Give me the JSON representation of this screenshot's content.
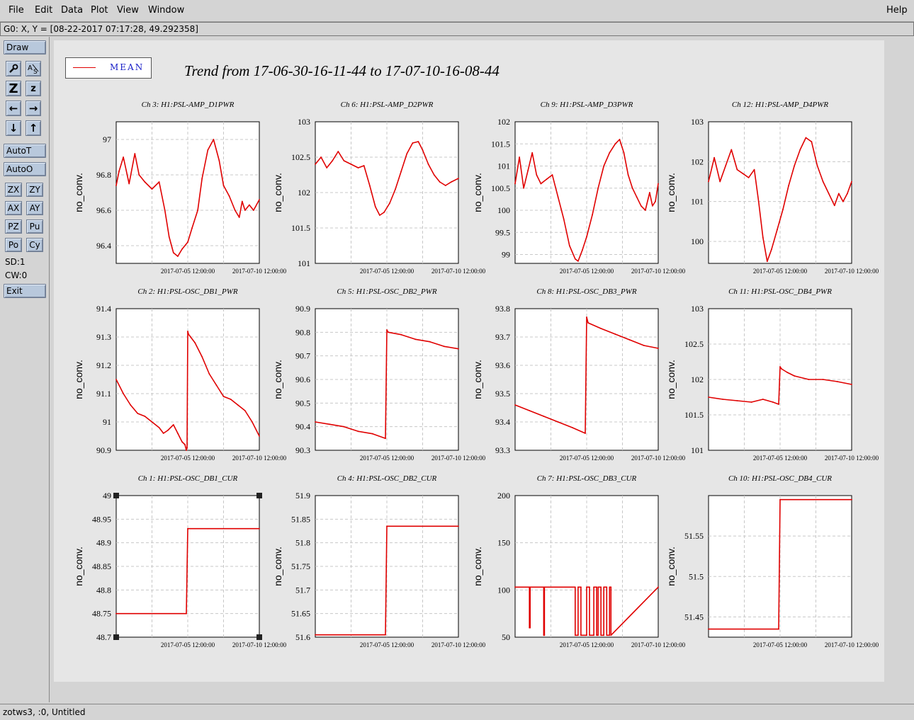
{
  "menu": {
    "file": "File",
    "edit": "Edit",
    "data": "Data",
    "plot": "Plot",
    "view": "View",
    "window": "Window",
    "help": "Help"
  },
  "coord_readout": "G0: X, Y = [08-22-2017 07:17:28, 49.292358]",
  "tools": {
    "draw": "Draw",
    "autot": "AutoT",
    "autoo": "AutoO",
    "zx": "ZX",
    "zy": "ZY",
    "ax": "AX",
    "ay": "AY",
    "pz": "PZ",
    "pu": "Pu",
    "po": "Po",
    "cy": "Cy",
    "sd": "SD:1",
    "cw": "CW:0",
    "exit": "Exit",
    "icons": [
      "wrench-icon",
      "text-resize-icon",
      "zoom-out-icon",
      "zoom-in-icon",
      "arrow-left-icon",
      "arrow-right-icon",
      "arrow-down-icon",
      "arrow-up-icon"
    ]
  },
  "legend": {
    "label": "MEAN",
    "color": "#e00000"
  },
  "main_title": "Trend from 17-06-30-16-11-44 to 17-07-10-16-08-44",
  "status": "zotws3, :0, Untitled",
  "chart_data": [
    {
      "type": "line",
      "title": "Ch 3: H1:PSL-AMP_D1PWR",
      "ylabel": "no_conv.",
      "ylim": [
        96.3,
        97.1
      ],
      "yticks": [
        "96.4",
        "96.6",
        "96.8",
        "97"
      ],
      "ytick_values": [
        96.4,
        96.6,
        96.8,
        97.0
      ],
      "xticks": [
        "2017-07-05 12:00:00",
        "2017-07-10 12:00:00"
      ],
      "x": [
        0,
        0.02,
        0.05,
        0.09,
        0.13,
        0.16,
        0.2,
        0.25,
        0.3,
        0.34,
        0.37,
        0.4,
        0.43,
        0.46,
        0.5,
        0.53,
        0.57,
        0.6,
        0.64,
        0.68,
        0.72,
        0.75,
        0.79,
        0.83,
        0.86,
        0.88,
        0.9,
        0.93,
        0.96,
        1.0
      ],
      "values": [
        96.74,
        96.82,
        96.9,
        96.75,
        96.92,
        96.8,
        96.76,
        96.72,
        96.76,
        96.6,
        96.45,
        96.36,
        96.34,
        96.38,
        96.42,
        96.5,
        96.6,
        96.78,
        96.94,
        97.0,
        96.88,
        96.74,
        96.68,
        96.6,
        96.56,
        96.65,
        96.6,
        96.63,
        96.6,
        96.66
      ]
    },
    {
      "type": "line",
      "title": "Ch 6: H1:PSL-AMP_D2PWR",
      "ylabel": "no_conv.",
      "ylim": [
        101,
        103
      ],
      "yticks": [
        "101",
        "101.5",
        "102",
        "102.5",
        "103"
      ],
      "ytick_values": [
        101,
        101.5,
        102,
        102.5,
        103
      ],
      "xticks": [
        "2017-07-05 12:00:00",
        "2017-07-10 12:00:00"
      ],
      "x": [
        0,
        0.04,
        0.08,
        0.12,
        0.16,
        0.2,
        0.25,
        0.3,
        0.34,
        0.38,
        0.42,
        0.45,
        0.48,
        0.52,
        0.56,
        0.6,
        0.64,
        0.68,
        0.72,
        0.75,
        0.79,
        0.83,
        0.87,
        0.91,
        0.95,
        1.0
      ],
      "values": [
        102.4,
        102.5,
        102.35,
        102.45,
        102.58,
        102.45,
        102.4,
        102.35,
        102.38,
        102.1,
        101.8,
        101.68,
        101.72,
        101.85,
        102.05,
        102.3,
        102.55,
        102.7,
        102.72,
        102.6,
        102.4,
        102.25,
        102.15,
        102.1,
        102.15,
        102.2
      ]
    },
    {
      "type": "line",
      "title": "Ch 9: H1:PSL-AMP_D3PWR",
      "ylabel": "no_conv.",
      "ylim": [
        98.8,
        102
      ],
      "yticks": [
        "99",
        "99.5",
        "100",
        "100.5",
        "101",
        "101.5",
        "102"
      ],
      "ytick_values": [
        99,
        99.5,
        100,
        100.5,
        101,
        101.5,
        102
      ],
      "xticks": [
        "2017-07-05 12:00:00",
        "2017-07-10 12:00:00"
      ],
      "x": [
        0,
        0.03,
        0.06,
        0.09,
        0.12,
        0.15,
        0.18,
        0.22,
        0.26,
        0.3,
        0.34,
        0.38,
        0.42,
        0.44,
        0.47,
        0.5,
        0.54,
        0.58,
        0.62,
        0.66,
        0.7,
        0.73,
        0.76,
        0.79,
        0.82,
        0.85,
        0.88,
        0.91,
        0.94,
        0.96,
        0.98,
        1.0
      ],
      "values": [
        100.6,
        101.2,
        100.5,
        100.9,
        101.3,
        100.8,
        100.6,
        100.7,
        100.8,
        100.3,
        99.8,
        99.2,
        98.9,
        98.85,
        99.1,
        99.4,
        99.9,
        100.5,
        101.0,
        101.3,
        101.5,
        101.6,
        101.3,
        100.8,
        100.5,
        100.3,
        100.1,
        100.0,
        100.4,
        100.1,
        100.2,
        100.6
      ]
    },
    {
      "type": "line",
      "title": "Ch 12: H1:PSL-AMP_D4PWR",
      "ylabel": "no_conv.",
      "ylim": [
        99.45,
        103
      ],
      "yticks": [
        "100",
        "101",
        "102",
        "103"
      ],
      "ytick_values": [
        100,
        101,
        102,
        103
      ],
      "xticks": [
        "2017-07-05 12:00:00",
        "2017-07-10 12:00:00"
      ],
      "x": [
        0,
        0.04,
        0.08,
        0.12,
        0.16,
        0.2,
        0.24,
        0.28,
        0.32,
        0.35,
        0.38,
        0.41,
        0.44,
        0.48,
        0.52,
        0.56,
        0.6,
        0.64,
        0.68,
        0.72,
        0.76,
        0.8,
        0.84,
        0.88,
        0.91,
        0.94,
        0.97,
        1.0
      ],
      "values": [
        101.5,
        102.1,
        101.5,
        101.9,
        102.3,
        101.8,
        101.7,
        101.6,
        101.8,
        101.0,
        100.1,
        99.5,
        99.8,
        100.3,
        100.8,
        101.4,
        101.9,
        102.3,
        102.6,
        102.5,
        101.9,
        101.5,
        101.2,
        100.9,
        101.2,
        101.0,
        101.2,
        101.5
      ]
    },
    {
      "type": "line",
      "title": "Ch 2: H1:PSL-OSC_DB1_PWR",
      "ylabel": "no_conv.",
      "ylim": [
        90.9,
        91.4
      ],
      "yticks": [
        "90.9",
        "91",
        "91.1",
        "91.2",
        "91.3",
        "91.4"
      ],
      "ytick_values": [
        90.9,
        91.0,
        91.1,
        91.2,
        91.3,
        91.4
      ],
      "xticks": [
        "2017-07-05 12:00:00",
        "2017-07-10 12:00:00"
      ],
      "x": [
        0,
        0.05,
        0.1,
        0.15,
        0.2,
        0.25,
        0.3,
        0.33,
        0.36,
        0.4,
        0.43,
        0.46,
        0.48,
        0.49,
        0.495,
        0.5,
        0.505,
        0.52,
        0.55,
        0.6,
        0.65,
        0.7,
        0.75,
        0.8,
        0.85,
        0.9,
        0.95,
        1.0
      ],
      "values": [
        91.15,
        91.1,
        91.06,
        91.03,
        91.02,
        91.0,
        90.98,
        90.96,
        90.97,
        90.99,
        90.96,
        90.93,
        90.92,
        90.9,
        90.91,
        91.32,
        91.31,
        91.3,
        91.28,
        91.23,
        91.17,
        91.13,
        91.09,
        91.08,
        91.06,
        91.04,
        91.0,
        90.95
      ]
    },
    {
      "type": "line",
      "title": "Ch 5: H1:PSL-OSC_DB2_PWR",
      "ylabel": "no_conv.",
      "ylim": [
        90.3,
        90.9
      ],
      "yticks": [
        "90.3",
        "90.4",
        "90.5",
        "90.6",
        "90.7",
        "90.8",
        "90.9"
      ],
      "ytick_values": [
        90.3,
        90.4,
        90.5,
        90.6,
        90.7,
        90.8,
        90.9
      ],
      "xticks": [
        "2017-07-05 12:00:00",
        "2017-07-10 12:00:00"
      ],
      "x": [
        0,
        0.1,
        0.2,
        0.3,
        0.4,
        0.49,
        0.5,
        0.51,
        0.6,
        0.7,
        0.8,
        0.9,
        1.0
      ],
      "values": [
        90.42,
        90.41,
        90.4,
        90.38,
        90.37,
        90.35,
        90.81,
        90.8,
        90.79,
        90.77,
        90.76,
        90.74,
        90.73
      ]
    },
    {
      "type": "line",
      "title": "Ch 8: H1:PSL-OSC_DB3_PWR",
      "ylabel": "no_conv.",
      "ylim": [
        93.3,
        93.8
      ],
      "yticks": [
        "93.3",
        "93.4",
        "93.5",
        "93.6",
        "93.7",
        "93.8"
      ],
      "ytick_values": [
        93.3,
        93.4,
        93.5,
        93.6,
        93.7,
        93.8
      ],
      "xticks": [
        "2017-07-05 12:00:00",
        "2017-07-10 12:00:00"
      ],
      "x": [
        0,
        0.1,
        0.2,
        0.3,
        0.4,
        0.49,
        0.5,
        0.51,
        0.6,
        0.7,
        0.8,
        0.9,
        1.0
      ],
      "values": [
        93.46,
        93.44,
        93.42,
        93.4,
        93.38,
        93.36,
        93.77,
        93.75,
        93.73,
        93.71,
        93.69,
        93.67,
        93.66
      ]
    },
    {
      "type": "line",
      "title": "Ch 11: H1:PSL-OSC_DB4_PWR",
      "ylabel": "no_conv.",
      "ylim": [
        101,
        103
      ],
      "yticks": [
        "101",
        "101.5",
        "102",
        "102.5",
        "103"
      ],
      "ytick_values": [
        101,
        101.5,
        102,
        102.5,
        103
      ],
      "xticks": [
        "2017-07-05 12:00:00",
        "2017-07-10 12:00:00"
      ],
      "x": [
        0,
        0.1,
        0.2,
        0.3,
        0.38,
        0.45,
        0.49,
        0.5,
        0.51,
        0.55,
        0.6,
        0.7,
        0.8,
        0.9,
        1.0
      ],
      "values": [
        101.75,
        101.72,
        101.7,
        101.68,
        101.72,
        101.68,
        101.65,
        102.18,
        102.15,
        102.1,
        102.05,
        102.0,
        102.0,
        101.97,
        101.93
      ]
    },
    {
      "type": "line",
      "title": "Ch 1: H1:PSL-OSC_DB1_CUR",
      "ylabel": "no_conv.",
      "ylim": [
        48.7,
        49
      ],
      "yticks": [
        "48.7",
        "48.75",
        "48.8",
        "48.85",
        "48.9",
        "48.95",
        "49"
      ],
      "ytick_values": [
        48.7,
        48.75,
        48.8,
        48.85,
        48.9,
        48.95,
        49.0
      ],
      "xticks": [
        "2017-07-05 12:00:00",
        "2017-07-10 12:00:00"
      ],
      "x": [
        0,
        0.49,
        0.5,
        1.0
      ],
      "values": [
        48.75,
        48.75,
        48.93,
        48.93
      ]
    },
    {
      "type": "line",
      "title": "Ch 4: H1:PSL-OSC_DB2_CUR",
      "ylabel": "no_conv.",
      "ylim": [
        51.6,
        51.9
      ],
      "yticks": [
        "51.6",
        "51.65",
        "51.7",
        "51.75",
        "51.8",
        "51.85",
        "51.9"
      ],
      "ytick_values": [
        51.6,
        51.65,
        51.7,
        51.75,
        51.8,
        51.85,
        51.9
      ],
      "xticks": [
        "2017-07-05 12:00:00",
        "2017-07-10 12:00:00"
      ],
      "x": [
        0,
        0.49,
        0.5,
        1.0
      ],
      "values": [
        51.605,
        51.605,
        51.835,
        51.835
      ]
    },
    {
      "type": "line",
      "title": "Ch 7: H1:PSL-OSC_DB3_CUR",
      "ylabel": "no_conv.",
      "ylim": [
        50,
        200
      ],
      "yticks": [
        "50",
        "100",
        "150",
        "200"
      ],
      "ytick_values": [
        50,
        100,
        150,
        200
      ],
      "xticks": [
        "2017-07-05 12:00:00",
        "2017-07-10 12:00:00"
      ],
      "x": [
        0,
        0.1,
        0.1,
        0.105,
        0.105,
        0.2,
        0.2,
        0.205,
        0.205,
        0.42,
        0.42,
        0.44,
        0.44,
        0.46,
        0.46,
        0.5,
        0.5,
        0.52,
        0.52,
        0.55,
        0.55,
        0.57,
        0.57,
        0.58,
        0.58,
        0.6,
        0.6,
        0.62,
        0.62,
        0.64,
        0.64,
        0.66,
        0.66,
        0.67,
        0.67,
        1.0
      ],
      "values": [
        103,
        103,
        60,
        60,
        103,
        103,
        52,
        52,
        103,
        103,
        52,
        52,
        103,
        103,
        52,
        52,
        103,
        103,
        52,
        52,
        103,
        103,
        52,
        52,
        103,
        103,
        52,
        52,
        103,
        103,
        52,
        52,
        103,
        103,
        52,
        103
      ]
    },
    {
      "type": "line",
      "title": "Ch 10: H1:PSL-OSC_DB4_CUR",
      "ylabel": "no_conv.",
      "ylim": [
        51.425,
        51.6
      ],
      "yticks": [
        "51.45",
        "51.5",
        "51.55"
      ],
      "ytick_values": [
        51.45,
        51.5,
        51.55
      ],
      "xticks": [
        "2017-07-05 12:00:00",
        "2017-07-10 12:00:00"
      ],
      "x": [
        0,
        0.49,
        0.5,
        1.0
      ],
      "values": [
        51.435,
        51.435,
        51.595,
        51.595
      ]
    }
  ]
}
